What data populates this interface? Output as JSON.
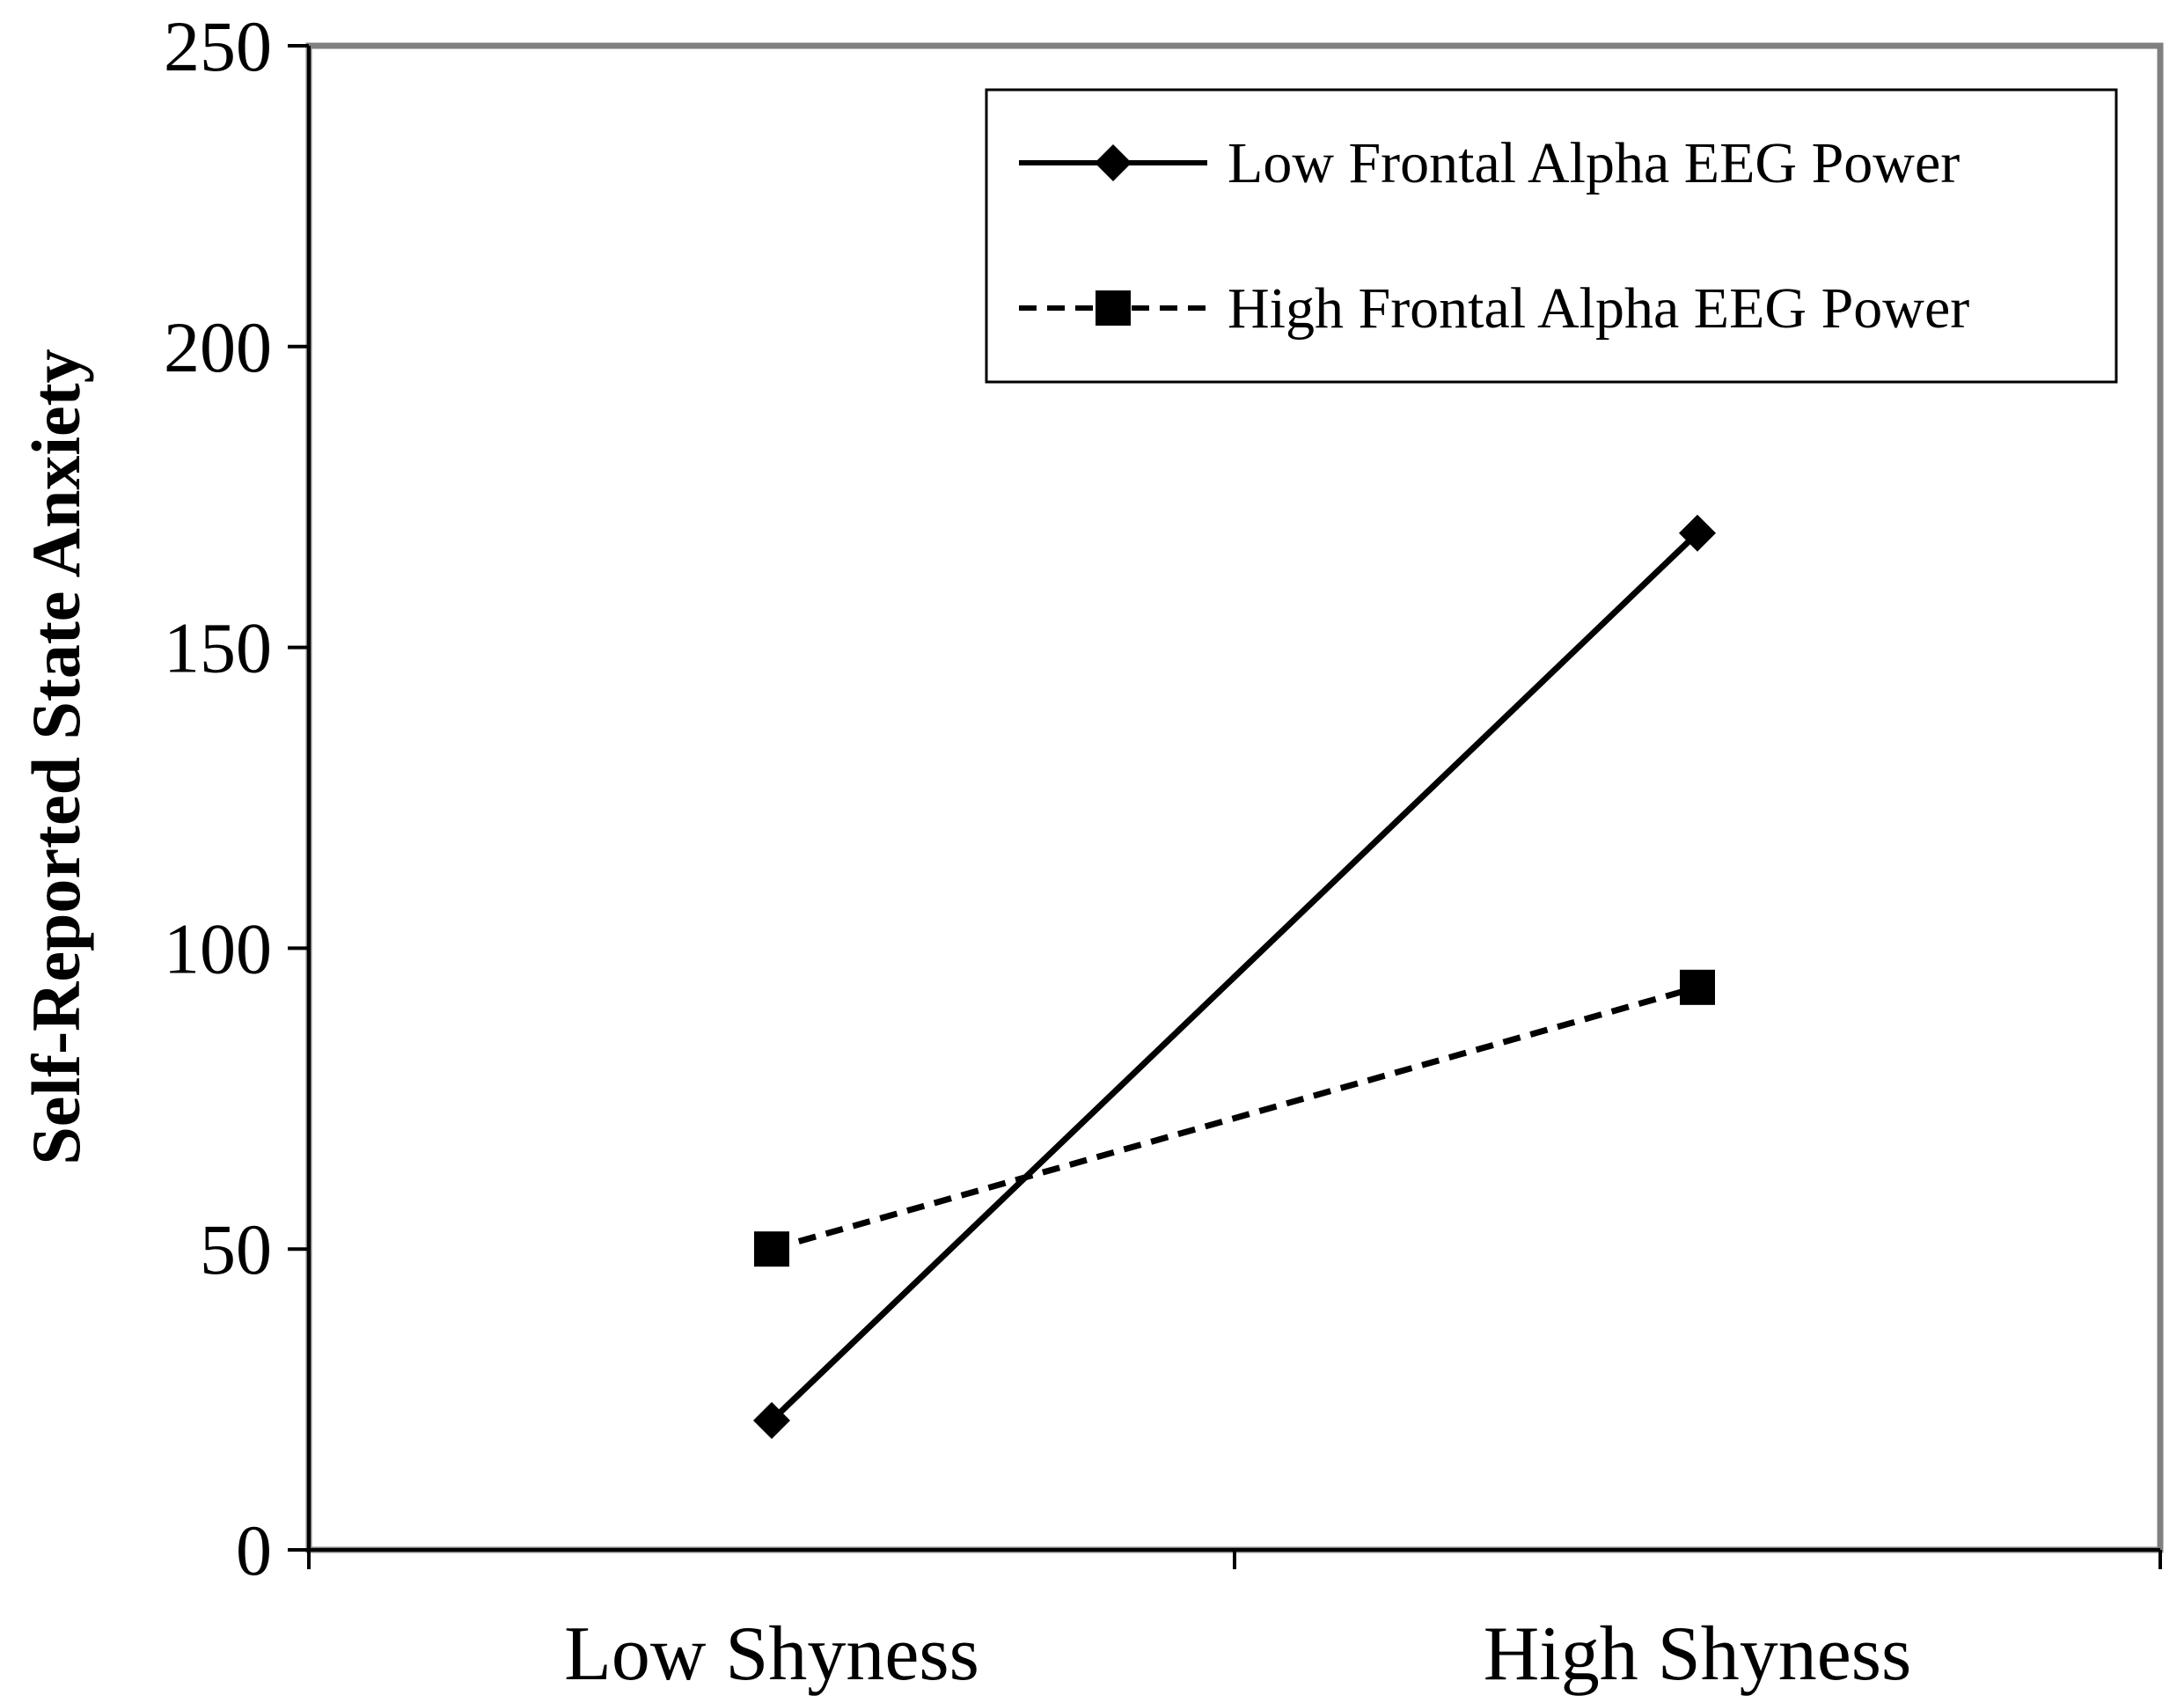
{
  "chart_data": {
    "type": "line",
    "title": "",
    "xlabel": "",
    "ylabel": "Self-Reported State Anxiety",
    "categories": [
      "Low Shyness",
      "High Shyness"
    ],
    "ylim": [
      0,
      250
    ],
    "yticks": [
      "0",
      "50",
      "100",
      "150",
      "200",
      "250"
    ],
    "grid": false,
    "legend_position": "top-right",
    "series": [
      {
        "name": "Low Frontal Alpha EEG Power",
        "values": [
          21.5,
          169
        ],
        "marker": "diamond",
        "line_style": "solid",
        "color": "#000000"
      },
      {
        "name": "High Frontal Alpha EEG Power",
        "values": [
          50,
          93.5
        ],
        "marker": "square",
        "line_style": "dashed",
        "color": "#000000"
      }
    ]
  },
  "colors": {
    "plot_border": "#808080",
    "axis": "#000000",
    "background": "#ffffff"
  }
}
